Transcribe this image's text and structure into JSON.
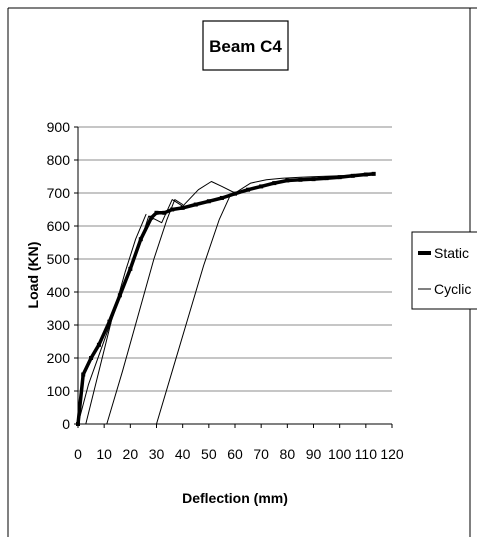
{
  "chart_data": {
    "type": "line",
    "title": "Beam C4",
    "xlabel": "Deflection (mm)",
    "ylabel": "Load (KN)",
    "xlim": [
      0,
      120
    ],
    "ylim": [
      0,
      900
    ],
    "x_ticks": [
      0,
      10,
      20,
      30,
      40,
      50,
      60,
      70,
      80,
      90,
      100,
      110,
      120
    ],
    "y_ticks": [
      0,
      100,
      200,
      300,
      400,
      500,
      600,
      700,
      800,
      900
    ],
    "grid": "horizontal",
    "legend_position": "right",
    "series": [
      {
        "name": "Static",
        "style": "thick",
        "color": "#000000",
        "x": [
          0,
          2,
          5,
          8,
          12,
          16,
          20,
          24,
          28,
          30,
          33,
          36,
          40,
          45,
          50,
          55,
          60,
          65,
          70,
          75,
          80,
          85,
          90,
          95,
          100,
          105,
          110,
          113
        ],
        "y": [
          0,
          150,
          200,
          240,
          310,
          390,
          470,
          560,
          625,
          640,
          640,
          650,
          655,
          665,
          675,
          685,
          698,
          710,
          720,
          730,
          738,
          740,
          742,
          745,
          748,
          752,
          756,
          758
        ]
      },
      {
        "name": "Cyclic",
        "style": "thin",
        "color": "#000000",
        "x": [
          0,
          4,
          9,
          14,
          20,
          25,
          27,
          32,
          36,
          40,
          46,
          51,
          55,
          60,
          66,
          72,
          78,
          85,
          92,
          100,
          108,
          113
        ],
        "y": [
          0,
          120,
          230,
          340,
          470,
          580,
          630,
          610,
          680,
          660,
          710,
          735,
          720,
          700,
          730,
          740,
          745,
          748,
          750,
          752,
          755,
          758
        ]
      },
      {
        "name": "",
        "style": "thin",
        "color": "#000000",
        "x": [
          3,
          8,
          13,
          18,
          22,
          26
        ],
        "y": [
          0,
          160,
          320,
          460,
          560,
          635
        ]
      },
      {
        "name": "",
        "style": "thin",
        "color": "#000000",
        "x": [
          11,
          17,
          23,
          29,
          34,
          37,
          40
        ],
        "y": [
          0,
          160,
          330,
          500,
          620,
          680,
          665
        ]
      },
      {
        "name": "",
        "style": "thin",
        "color": "#000000",
        "x": [
          30,
          36,
          42,
          48,
          54,
          58,
          60
        ],
        "y": [
          0,
          160,
          320,
          480,
          620,
          690,
          700
        ]
      }
    ]
  }
}
